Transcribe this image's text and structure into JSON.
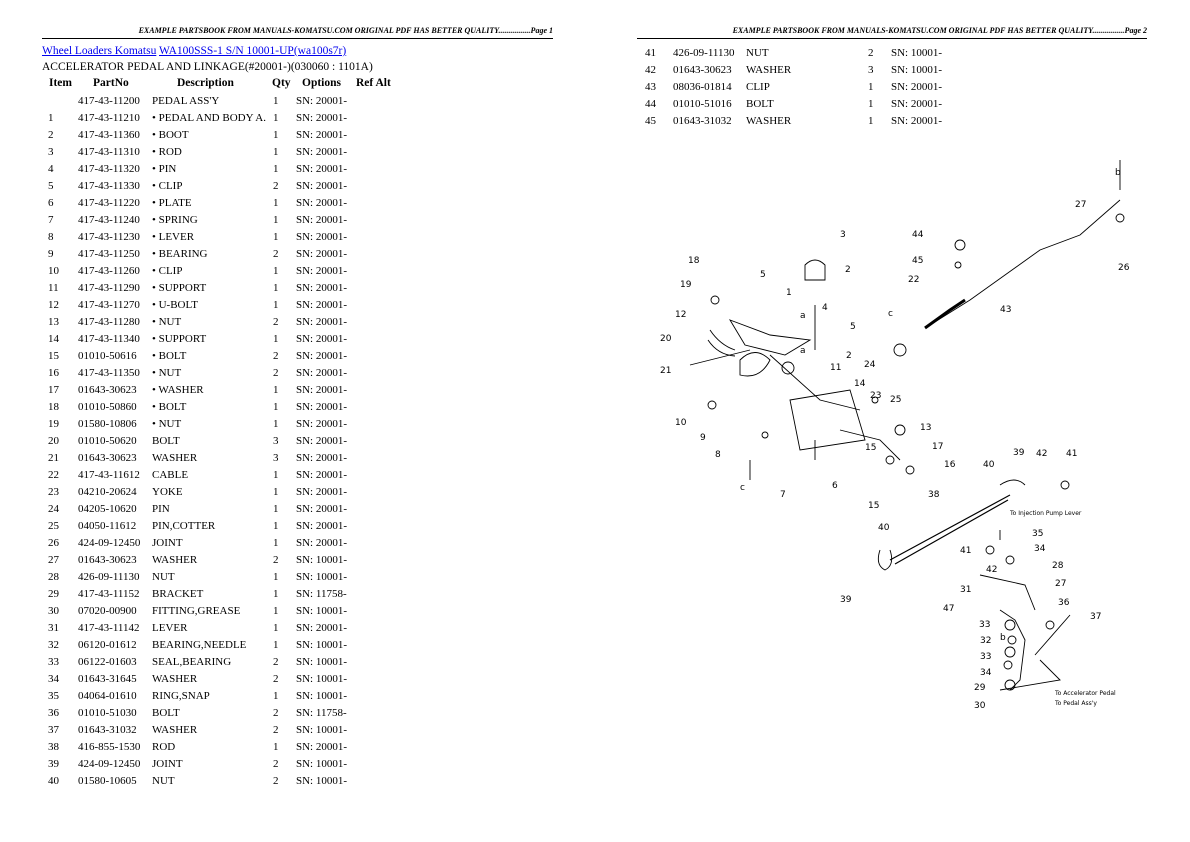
{
  "page1": {
    "header": "EXAMPLE PARTSBOOK FROM MANUALS-KOMATSU.COM ORIGINAL PDF HAS BETTER QUALITY................Page 1",
    "breadcrumb": {
      "category": "Wheel Loaders Komatsu",
      "model": "WA100SSS-1 S/N 10001-UP(wa100s7r)"
    },
    "subtitle": "ACCELERATOR PEDAL AND LINKAGE(#20001-)(030060 : 1101A)",
    "columns": [
      "Item",
      "PartNo",
      "Description",
      "Qty",
      "Options",
      "Ref Alt"
    ],
    "rows": [
      [
        "",
        "417-43-11200",
        "PEDAL ASS'Y",
        "1",
        "SN: 20001-"
      ],
      [
        "1",
        "417-43-11210",
        "• PEDAL AND BODY A.",
        "1",
        "SN: 20001-"
      ],
      [
        "2",
        "417-43-11360",
        "• BOOT",
        "1",
        "SN: 20001-"
      ],
      [
        "3",
        "417-43-11310",
        "• ROD",
        "1",
        "SN: 20001-"
      ],
      [
        "4",
        "417-43-11320",
        "• PIN",
        "1",
        "SN: 20001-"
      ],
      [
        "5",
        "417-43-11330",
        "• CLIP",
        "2",
        "SN: 20001-"
      ],
      [
        "6",
        "417-43-11220",
        "• PLATE",
        "1",
        "SN: 20001-"
      ],
      [
        "7",
        "417-43-11240",
        "• SPRING",
        "1",
        "SN: 20001-"
      ],
      [
        "8",
        "417-43-11230",
        "• LEVER",
        "1",
        "SN: 20001-"
      ],
      [
        "9",
        "417-43-11250",
        "• BEARING",
        "2",
        "SN: 20001-"
      ],
      [
        "10",
        "417-43-11260",
        "• CLIP",
        "1",
        "SN: 20001-"
      ],
      [
        "11",
        "417-43-11290",
        "• SUPPORT",
        "1",
        "SN: 20001-"
      ],
      [
        "12",
        "417-43-11270",
        "• U-BOLT",
        "1",
        "SN: 20001-"
      ],
      [
        "13",
        "417-43-11280",
        "• NUT",
        "2",
        "SN: 20001-"
      ],
      [
        "14",
        "417-43-11340",
        "• SUPPORT",
        "1",
        "SN: 20001-"
      ],
      [
        "15",
        "01010-50616",
        "• BOLT",
        "2",
        "SN: 20001-"
      ],
      [
        "16",
        "417-43-11350",
        "• NUT",
        "2",
        "SN: 20001-"
      ],
      [
        "17",
        "01643-30623",
        "• WASHER",
        "1",
        "SN: 20001-"
      ],
      [
        "18",
        "01010-50860",
        "• BOLT",
        "1",
        "SN: 20001-"
      ],
      [
        "19",
        "01580-10806",
        "• NUT",
        "1",
        "SN: 20001-"
      ],
      [
        "20",
        "01010-50620",
        "BOLT",
        "3",
        "SN: 20001-"
      ],
      [
        "21",
        "01643-30623",
        "WASHER",
        "3",
        "SN: 20001-"
      ],
      [
        "22",
        "417-43-11612",
        "CABLE",
        "1",
        "SN: 20001-"
      ],
      [
        "23",
        "04210-20624",
        "YOKE",
        "1",
        "SN: 20001-"
      ],
      [
        "24",
        "04205-10620",
        "PIN",
        "1",
        "SN: 20001-"
      ],
      [
        "25",
        "04050-11612",
        "PIN,COTTER",
        "1",
        "SN: 20001-"
      ],
      [
        "26",
        "424-09-12450",
        "JOINT",
        "1",
        "SN: 20001-"
      ],
      [
        "27",
        "01643-30623",
        "WASHER",
        "2",
        "SN: 10001-"
      ],
      [
        "28",
        "426-09-11130",
        "NUT",
        "1",
        "SN: 10001-"
      ],
      [
        "29",
        "417-43-11152",
        "BRACKET",
        "1",
        "SN: 11758-"
      ],
      [
        "30",
        "07020-00900",
        "FITTING,GREASE",
        "1",
        "SN: 10001-"
      ],
      [
        "31",
        "417-43-11142",
        "LEVER",
        "1",
        "SN: 20001-"
      ],
      [
        "32",
        "06120-01612",
        "BEARING,NEEDLE",
        "1",
        "SN: 10001-"
      ],
      [
        "33",
        "06122-01603",
        "SEAL,BEARING",
        "2",
        "SN: 10001-"
      ],
      [
        "34",
        "01643-31645",
        "WASHER",
        "2",
        "SN: 10001-"
      ],
      [
        "35",
        "04064-01610",
        "RING,SNAP",
        "1",
        "SN: 10001-"
      ],
      [
        "36",
        "01010-51030",
        "BOLT",
        "2",
        "SN: 11758-"
      ],
      [
        "37",
        "01643-31032",
        "WASHER",
        "2",
        "SN: 10001-"
      ],
      [
        "38",
        "416-855-1530",
        "ROD",
        "1",
        "SN: 20001-"
      ],
      [
        "39",
        "424-09-12450",
        "JOINT",
        "2",
        "SN: 10001-"
      ],
      [
        "40",
        "01580-10605",
        "NUT",
        "2",
        "SN: 10001-"
      ]
    ]
  },
  "page2": {
    "header": "EXAMPLE PARTSBOOK FROM MANUALS-KOMATSU.COM ORIGINAL PDF HAS BETTER QUALITY................Page 2",
    "rows": [
      [
        "41",
        "426-09-11130",
        "NUT",
        "2",
        "SN: 10001-"
      ],
      [
        "42",
        "01643-30623",
        "WASHER",
        "3",
        "SN: 10001-"
      ],
      [
        "43",
        "08036-01814",
        "CLIP",
        "1",
        "SN: 20001-"
      ],
      [
        "44",
        "01010-51016",
        "BOLT",
        "1",
        "SN: 20001-"
      ],
      [
        "45",
        "01643-31032",
        "WASHER",
        "1",
        "SN: 20001-"
      ]
    ],
    "diagram": {
      "callouts": [
        "b",
        "27",
        "26",
        "3",
        "2",
        "44",
        "45",
        "22",
        "43",
        "18",
        "19",
        "5",
        "1",
        "4",
        "5",
        "c",
        "12",
        "20",
        "21",
        "a",
        "a",
        "2",
        "11",
        "24",
        "14",
        "23",
        "25",
        "15",
        "10",
        "9",
        "8",
        "c",
        "13",
        "17",
        "16",
        "6",
        "7",
        "15",
        "38",
        "39",
        "42",
        "41",
        "40",
        "40",
        "39",
        "41",
        "42",
        "31",
        "47",
        "33",
        "32",
        "33",
        "34",
        "29",
        "30",
        "35",
        "34",
        "28",
        "27",
        "36",
        "37",
        "b"
      ],
      "notes": [
        "To Injection Pump Lever",
        "To Accelerator Pedal",
        "To Pedal Ass'y"
      ]
    }
  }
}
